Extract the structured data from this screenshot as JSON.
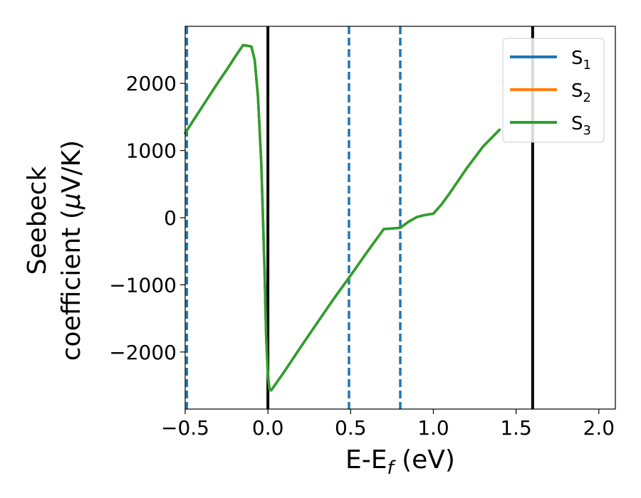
{
  "chart_data": {
    "type": "line",
    "xlabel_main": "E-E",
    "xlabel_sub": "f",
    "xlabel_unit": " (eV)",
    "ylabel_line1": "Seebeck",
    "ylabel_line2": "coefficient  (",
    "ylabel_mu": "μ",
    "ylabel_unit": "V/K)",
    "xlim": [
      -0.5,
      2.1
    ],
    "ylim": [
      -2850,
      2850
    ],
    "x_ticks": [
      {
        "value": -0.5,
        "label": "−0.5"
      },
      {
        "value": 0.0,
        "label": "0.0"
      },
      {
        "value": 0.5,
        "label": "0.5"
      },
      {
        "value": 1.0,
        "label": "1.0"
      },
      {
        "value": 1.5,
        "label": "1.5"
      },
      {
        "value": 2.0,
        "label": "2.0"
      }
    ],
    "y_ticks": [
      {
        "value": 2000,
        "label": "2000"
      },
      {
        "value": 1000,
        "label": "1000"
      },
      {
        "value": 0,
        "label": "0"
      },
      {
        "value": -1000,
        "label": "−1000"
      },
      {
        "value": -2000,
        "label": "−2000"
      }
    ],
    "vlines_solid": [
      0.0,
      1.6
    ],
    "vlines_dashed": [
      -0.49,
      0.49,
      0.8
    ],
    "legend_position": "top-right",
    "series": [
      {
        "name": "S",
        "sub": "1",
        "color": "#1f77b4"
      },
      {
        "name": "S",
        "sub": "2",
        "color": "#ff7f0e"
      },
      {
        "name": "S",
        "sub": "3",
        "color": "#2ca02c"
      }
    ],
    "x": [
      -0.5,
      -0.45,
      -0.4,
      -0.35,
      -0.3,
      -0.25,
      -0.2,
      -0.15,
      -0.1,
      -0.08,
      -0.06,
      -0.04,
      -0.02,
      -0.01,
      0.0,
      0.01,
      0.02,
      0.04,
      0.06,
      0.1,
      0.2,
      0.3,
      0.4,
      0.5,
      0.6,
      0.7,
      0.8,
      0.85,
      0.9,
      0.95,
      1.0,
      1.05,
      1.1,
      1.2,
      1.3,
      1.4
    ],
    "y": [
      1260,
      1450,
      1640,
      1830,
      2020,
      2200,
      2390,
      2570,
      2550,
      2350,
      1800,
      800,
      -800,
      -1800,
      -2350,
      -2560,
      -2570,
      -2500,
      -2430,
      -2290,
      -1920,
      -1560,
      -1200,
      -860,
      -510,
      -170,
      -150,
      -60,
      10,
      40,
      60,
      200,
      370,
      730,
      1060,
      1310
    ]
  }
}
